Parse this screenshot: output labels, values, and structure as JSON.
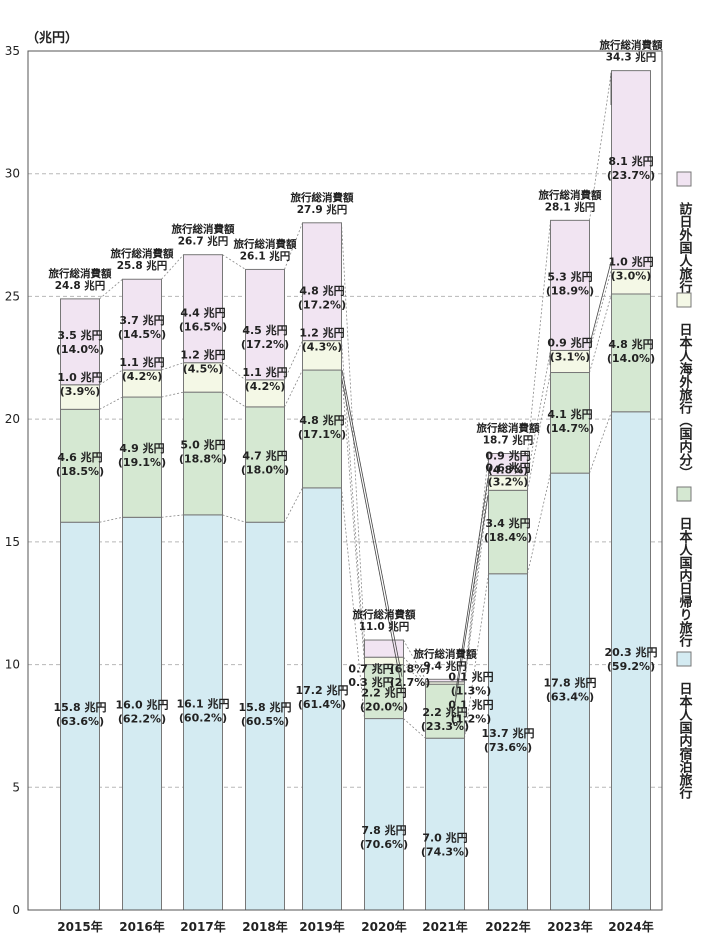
{
  "chart_data": {
    "type": "bar",
    "stacked": true,
    "unit_label": "（兆円）",
    "categories": [
      "2015年",
      "2016年",
      "2017年",
      "2018年",
      "2019年",
      "2020年",
      "2021年",
      "2022年",
      "2023年",
      "2024年"
    ],
    "ylim": [
      0,
      35
    ],
    "yticks": [
      0,
      5,
      10,
      15,
      20,
      25,
      30,
      35
    ],
    "grid": true,
    "legend_position": "right (vertical)",
    "series": [
      {
        "name": "日本人国内宿泊旅行",
        "color": "#d4ebf2",
        "values": [
          15.8,
          16.0,
          16.1,
          15.8,
          17.2,
          7.8,
          7.0,
          13.7,
          17.8,
          20.3
        ],
        "labels": [
          [
            "15.8 兆円",
            "(63.6%)"
          ],
          [
            "16.0 兆円",
            "(62.2%)"
          ],
          [
            "16.1 兆円",
            "(60.2%)"
          ],
          [
            "15.8 兆円",
            "(60.5%)"
          ],
          [
            "17.2 兆円",
            "(61.4%)"
          ],
          [
            "7.8 兆円",
            "(70.6%)"
          ],
          [
            "7.0 兆円",
            "(74.3%)"
          ],
          [
            "13.7 兆円",
            "(73.6%)"
          ],
          [
            "17.8 兆円",
            "(63.4%)"
          ],
          [
            "20.3 兆円",
            "(59.2%)"
          ]
        ]
      },
      {
        "name": "日本人国内日帰り旅行",
        "color": "#d5e8d2",
        "values": [
          4.6,
          4.9,
          5.0,
          4.7,
          4.8,
          2.2,
          2.2,
          3.4,
          4.1,
          4.8
        ],
        "labels": [
          [
            "4.6 兆円",
            "(18.5%)"
          ],
          [
            "4.9 兆円",
            "(19.1%)"
          ],
          [
            "5.0 兆円",
            "(18.8%)"
          ],
          [
            "4.7 兆円",
            "(18.0%)"
          ],
          [
            "4.8 兆円",
            "(17.1%)"
          ],
          [
            "2.2 兆円",
            "(20.0%)"
          ],
          [
            "2.2 兆円",
            "(23.3%)"
          ],
          [
            "3.4 兆円",
            "(18.4%)"
          ],
          [
            "4.1 兆円",
            "(14.7%)"
          ],
          [
            "4.8 兆円",
            "(14.0%)"
          ]
        ]
      },
      {
        "name": "日本人海外旅行（国内分）",
        "color": "#f4f8e6",
        "values": [
          1.0,
          1.1,
          1.2,
          1.1,
          1.2,
          0.3,
          0.1,
          0.6,
          0.9,
          1.0
        ],
        "labels": [
          [
            "1.0 兆円",
            "(3.9%)"
          ],
          [
            "1.1 兆円",
            "(4.2%)"
          ],
          [
            "1.2 兆円",
            "(4.5%)"
          ],
          [
            "1.1 兆円",
            "(4.2%)"
          ],
          [
            "1.2 兆円",
            "(4.3%)"
          ],
          [
            "0.3 兆円",
            "(2.7%)"
          ],
          [
            "0.1 兆円",
            "(1.2%)"
          ],
          [
            "0.6 兆円",
            "(3.2%)"
          ],
          [
            "0.9 兆円",
            "(3.1%)"
          ],
          [
            "1.0 兆円",
            "(3.0%)"
          ]
        ]
      },
      {
        "name": "訪日外国人旅行",
        "color": "#f1e4f2",
        "values": [
          3.5,
          3.7,
          4.4,
          4.5,
          4.8,
          0.7,
          0.1,
          0.9,
          5.3,
          8.1
        ],
        "labels": [
          [
            "3.5 兆円",
            "(14.0%)"
          ],
          [
            "3.7 兆円",
            "(14.5%)"
          ],
          [
            "4.4 兆円",
            "(16.5%)"
          ],
          [
            "4.5 兆円",
            "(17.2%)"
          ],
          [
            "4.8 兆円",
            "(17.2%)"
          ],
          [
            "0.7 兆円",
            "(6.8%)"
          ],
          [
            "0.1 兆円",
            "(1.3%)"
          ],
          [
            "0.9 兆円",
            "(4.8%)"
          ],
          [
            "5.3 兆円",
            "(18.9%)"
          ],
          [
            "8.1 兆円",
            "(23.7%)"
          ]
        ]
      }
    ],
    "total_label": "旅行総消費額",
    "totals": [
      "24.8 兆円",
      "25.8 兆円",
      "26.7 兆円",
      "26.1 兆円",
      "27.9 兆円",
      "11.0 兆円",
      "9.4 兆円",
      "18.7 兆円",
      "28.1 兆円",
      "34.3 兆円"
    ]
  }
}
